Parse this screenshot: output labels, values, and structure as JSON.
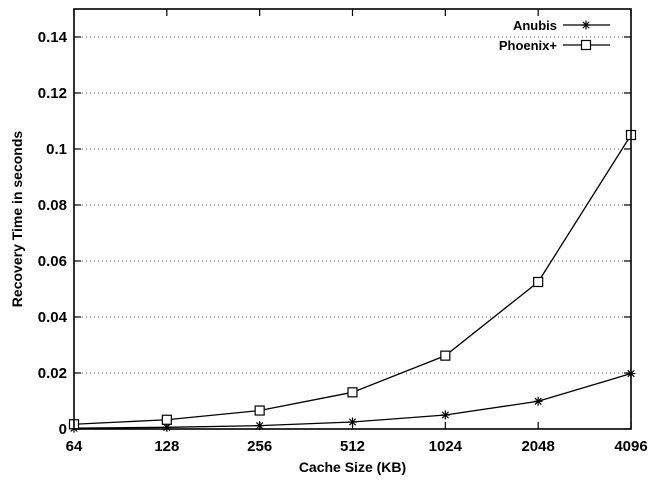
{
  "chart_data": {
    "type": "line",
    "title": "",
    "xlabel": "Cache Size (KB)",
    "ylabel": "Recovery Time in seconds",
    "categories": [
      "64",
      "128",
      "256",
      "512",
      "1024",
      "2048",
      "4096"
    ],
    "yticks": [
      "0",
      "0.02",
      "0.04",
      "0.06",
      "0.08",
      "0.1",
      "0.12",
      "0.14"
    ],
    "ylim": [
      0,
      0.15
    ],
    "grid": "horizontal dotted",
    "legend_position": "top-right",
    "series": [
      {
        "name": "Anubis",
        "marker": "asterisk",
        "values": [
          0.0003,
          0.0006,
          0.0012,
          0.0025,
          0.005,
          0.0099,
          0.0198
        ]
      },
      {
        "name": "Phoenix+",
        "marker": "square",
        "values": [
          0.0017,
          0.0033,
          0.0066,
          0.0131,
          0.0262,
          0.0525,
          0.105
        ]
      }
    ]
  }
}
